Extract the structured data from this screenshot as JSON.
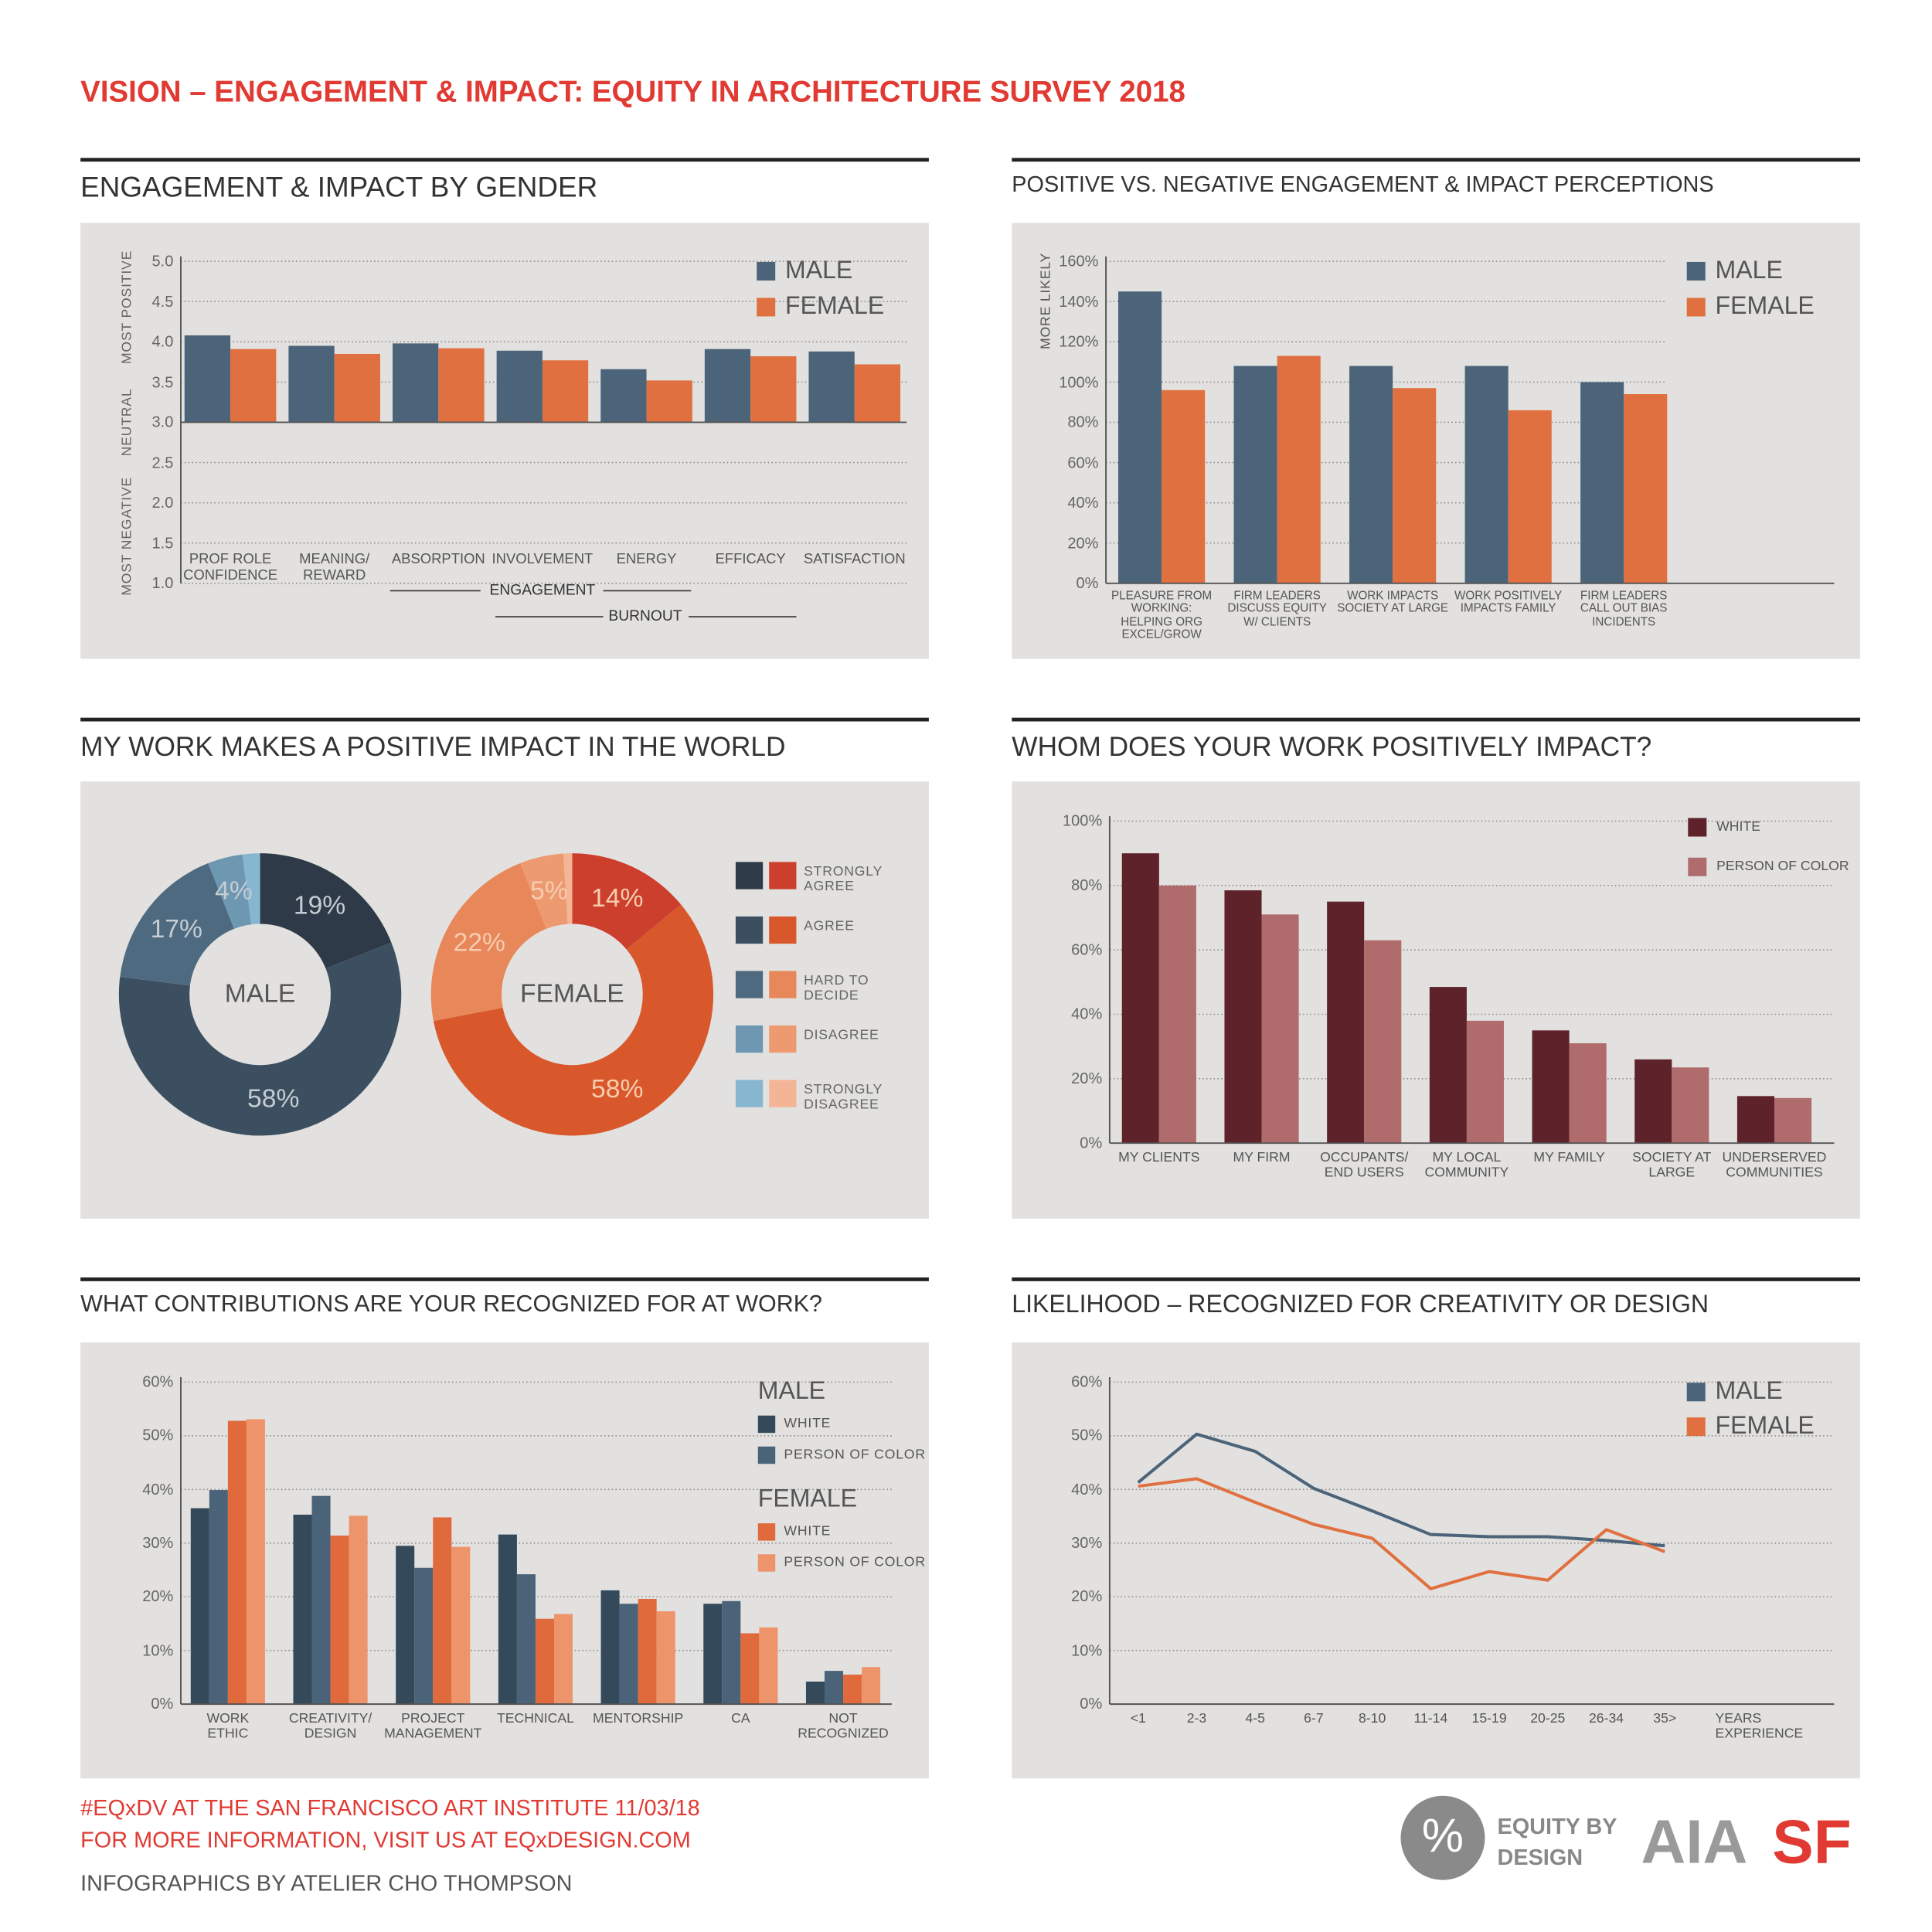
{
  "header": {
    "title": "VISION – ENGAGEMENT & IMPACT: EQUITY IN ARCHITECTURE SURVEY 2018"
  },
  "chart_data": [
    {
      "type": "bar",
      "title": "ENGAGEMENT & IMPACT BY GENDER",
      "categories": [
        "PROF ROLE\nCONFIDENCE",
        "MEANING/\nREWARD",
        "ABSORPTION",
        "INVOLVEMENT",
        "ENERGY",
        "EFFICACY",
        "SATISFACTION"
      ],
      "series": [
        {
          "name": "MALE",
          "color": "#4b6479",
          "values": [
            4.08,
            3.95,
            3.98,
            3.89,
            3.66,
            3.91,
            3.88
          ]
        },
        {
          "name": "FEMALE",
          "color": "#e0703f",
          "values": [
            3.91,
            3.85,
            3.92,
            3.77,
            3.52,
            3.82,
            3.72
          ]
        }
      ],
      "ylim": [
        1,
        5
      ],
      "yticks": [
        {
          "value": 1,
          "label": "1.0"
        },
        1.5,
        {
          "value": 2,
          "label": "2.0"
        },
        2.5,
        {
          "value": 3,
          "label": "3.0"
        },
        3.5,
        {
          "value": 4,
          "label": "4.0"
        },
        4.5,
        {
          "value": 5,
          "label": "5.0"
        }
      ],
      "baseline": 3,
      "y_annotations": [
        "MOST POSITIVE",
        "NEUTRAL",
        "MOST NEGATIVE"
      ],
      "category_groups": [
        "ENGAGEMENT",
        "BURNOUT"
      ],
      "grid": true,
      "legend": "top-right"
    },
    {
      "type": "bar",
      "title": "POSITIVE VS. NEGATIVE ENGAGEMENT & IMPACT PERCEPTIONS",
      "categories": [
        "PLEASURE FROM\nWORKING:\nHELPING ORG\nEXCEL/GROW",
        "FIRM LEADERS\nDISCUSS EQUITY\nW/ CLIENTS",
        "WORK IMPACTS\nSOCIETY AT LARGE",
        "WORK POSITIVELY\nIMPACTS FAMILY",
        "FIRM LEADERS\nCALL OUT BIAS\nINCIDENTS"
      ],
      "series": [
        {
          "name": "MALE",
          "color": "#4b6479",
          "values": [
            145,
            108,
            108,
            108,
            100
          ]
        },
        {
          "name": "FEMALE",
          "color": "#e0703f",
          "values": [
            96,
            113,
            97,
            86,
            94
          ]
        }
      ],
      "ylim": [
        0,
        160
      ],
      "yticks": [
        {
          "value": 0,
          "label": "0%"
        },
        {
          "value": 20,
          "label": "20%"
        },
        {
          "value": 40,
          "label": "40%"
        },
        {
          "value": 60,
          "label": "60%"
        },
        {
          "value": 80,
          "label": "80%"
        },
        {
          "value": 100,
          "label": "100%"
        },
        {
          "value": 120,
          "label": "120%"
        },
        {
          "value": 140,
          "label": "140%"
        },
        {
          "value": 160,
          "label": "160%"
        }
      ],
      "y_label": "MORE LIKELY",
      "grid": true,
      "legend": "top-right"
    },
    {
      "type": "donut",
      "title": "MY WORK MAKES A POSITIVE IMPACT IN THE WORLD",
      "categories": [
        "STRONGLY\nAGREE",
        "AGREE",
        "HARD TO\nDECIDE",
        "DISAGREE",
        "STRONGLY\nDISAGREE"
      ],
      "series": [
        {
          "name": "MALE",
          "colors": [
            "#2e3a47",
            "#3c4f60",
            "#4e6a80",
            "#6e97b2",
            "#86b6d0"
          ],
          "label_color": "#c5ccd3",
          "values": [
            19,
            58,
            17,
            4,
            2
          ],
          "value_labels": [
            "19%",
            "58%",
            "17%",
            "4%",
            null
          ]
        },
        {
          "name": "FEMALE",
          "colors": [
            "#cc3f2c",
            "#d9582b",
            "#e8875a",
            "#ee9a70",
            "#f4b597"
          ],
          "label_color": "#f7cdb0",
          "values": [
            14,
            58,
            22,
            5,
            1
          ],
          "value_labels": [
            "14%",
            "58%",
            "22%",
            "5%",
            null
          ]
        }
      ],
      "legend": "right"
    },
    {
      "type": "bar",
      "title": "WHOM DOES YOUR WORK POSITIVELY IMPACT?",
      "categories": [
        "MY CLIENTS",
        "MY FIRM",
        "OCCUPANTS/\nEND USERS",
        "MY LOCAL\nCOMMUNITY",
        "MY FAMILY",
        "SOCIETY AT\nLARGE",
        "UNDERSERVED\nCOMMUNITIES"
      ],
      "series": [
        {
          "name": "WHITE",
          "color": "#5e222a",
          "values": [
            90,
            78.5,
            75,
            48.5,
            35,
            26,
            14.6
          ]
        },
        {
          "name": "PERSON OF COLOR",
          "color": "#b06c6c",
          "values": [
            80,
            71,
            63,
            38,
            31,
            23.5,
            14
          ]
        }
      ],
      "ylim": [
        0,
        100
      ],
      "yticks": [
        {
          "value": 0,
          "label": "0%"
        },
        {
          "value": 20,
          "label": "20%"
        },
        {
          "value": 40,
          "label": "40%"
        },
        {
          "value": 60,
          "label": "60%"
        },
        {
          "value": 80,
          "label": "80%"
        },
        {
          "value": 100,
          "label": "100%"
        }
      ],
      "grid": true,
      "legend": "top-right"
    },
    {
      "type": "bar",
      "title": "WHAT CONTRIBUTIONS ARE YOUR RECOGNIZED FOR AT WORK?",
      "categories": [
        "WORK\nETHIC",
        "CREATIVITY/\nDESIGN",
        "PROJECT\nMANAGEMENT",
        "TECHNICAL",
        "MENTORSHIP",
        "CA",
        "NOT\nRECOGNIZED"
      ],
      "groups": [
        {
          "name": "MALE",
          "series": [
            {
              "name": "WHITE",
              "color": "#34495a",
              "values": [
                36.5,
                35.3,
                29.5,
                31.6,
                21.2,
                18.7,
                4.2
              ]
            },
            {
              "name": "PERSON OF COLOR",
              "color": "#4b6378",
              "values": [
                39.9,
                38.8,
                25.4,
                24.2,
                18.7,
                19.2,
                6.2
              ]
            }
          ]
        },
        {
          "name": "FEMALE",
          "series": [
            {
              "name": "WHITE",
              "color": "#e06a3c",
              "values": [
                52.8,
                31.4,
                34.8,
                15.9,
                19.6,
                13.2,
                5.5
              ]
            },
            {
              "name": "PERSON OF COLOR",
              "color": "#ee946a",
              "values": [
                53.1,
                35.1,
                29.3,
                16.8,
                17.3,
                14.3,
                6.9
              ]
            }
          ]
        }
      ],
      "ylim": [
        0,
        60
      ],
      "yticks": [
        {
          "value": 0,
          "label": "0%"
        },
        {
          "value": 10,
          "label": "10%"
        },
        {
          "value": 20,
          "label": "20%"
        },
        {
          "value": 30,
          "label": "30%"
        },
        {
          "value": 40,
          "label": "40%"
        },
        {
          "value": 50,
          "label": "50%"
        },
        {
          "value": 60,
          "label": "60%"
        }
      ],
      "grid": true,
      "legend": "top-right"
    },
    {
      "type": "line",
      "title": "LIKELIHOOD – RECOGNIZED FOR CREATIVITY OR DESIGN",
      "categories": [
        "<1",
        "2-3",
        "4-5",
        "6-7",
        "8-10",
        "11-14",
        "15-19",
        "20-25",
        "26-34",
        "35>"
      ],
      "x_label": "YEARS\nEXPERIENCE",
      "series": [
        {
          "name": "MALE",
          "color": "#4b6479",
          "values": [
            41.3,
            50.3,
            47.1,
            40.2,
            36,
            31.6,
            31.2,
            31.2,
            30.5,
            29.5
          ]
        },
        {
          "name": "FEMALE",
          "color": "#e0703f",
          "values": [
            40.6,
            42,
            37.6,
            33.5,
            30.9,
            21.5,
            24.7,
            23.1,
            32.5,
            28.4
          ]
        }
      ],
      "ylim": [
        0,
        60
      ],
      "yticks": [
        {
          "value": 0,
          "label": "0%"
        },
        {
          "value": 10,
          "label": "10%"
        },
        {
          "value": 20,
          "label": "20%"
        },
        {
          "value": 30,
          "label": "30%"
        },
        {
          "value": 40,
          "label": "40%"
        },
        {
          "value": 50,
          "label": "50%"
        },
        {
          "value": 60,
          "label": "60%"
        }
      ],
      "grid": true,
      "legend": "top-right"
    }
  ],
  "footer": {
    "event": "#EQxDV AT THE SAN FRANCISCO ART INSTITUTE 11/03/18",
    "info": "FOR MORE INFORMATION, VISIT US AT EQxDESIGN.COM",
    "credit": "INFOGRAPHICS BY ATELIER CHO THOMPSON"
  },
  "logos": {
    "symbol": "%",
    "line1": "EQUITY BY",
    "line2": "DESIGN",
    "aia": "AIA",
    "sf": "SF"
  }
}
